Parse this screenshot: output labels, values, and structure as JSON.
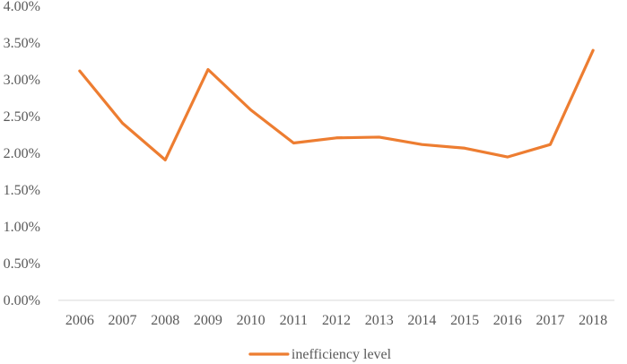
{
  "chart_data": {
    "type": "line",
    "title": "",
    "xlabel": "",
    "ylabel": "",
    "categories": [
      "2006",
      "2007",
      "2008",
      "2009",
      "2010",
      "2011",
      "2012",
      "2013",
      "2014",
      "2015",
      "2016",
      "2017",
      "2018"
    ],
    "series": [
      {
        "name": "inefficiency level",
        "color": "#ED7D31",
        "values": [
          3.12,
          2.41,
          1.91,
          3.14,
          2.59,
          2.14,
          2.21,
          2.22,
          2.12,
          2.07,
          1.95,
          2.12,
          3.4
        ]
      }
    ],
    "ylim": [
      0,
      4
    ],
    "yticks": [
      0,
      0.5,
      1,
      1.5,
      2,
      2.5,
      3,
      3.5,
      4
    ],
    "ytick_labels": [
      "0.00%",
      "0.50%",
      "1.00%",
      "1.50%",
      "2.00%",
      "2.50%",
      "3.00%",
      "3.50%",
      "4.00%"
    ],
    "grid": false,
    "legend_position": "bottom",
    "axis_color": "#D9D9D9",
    "text_color": "#595959"
  }
}
